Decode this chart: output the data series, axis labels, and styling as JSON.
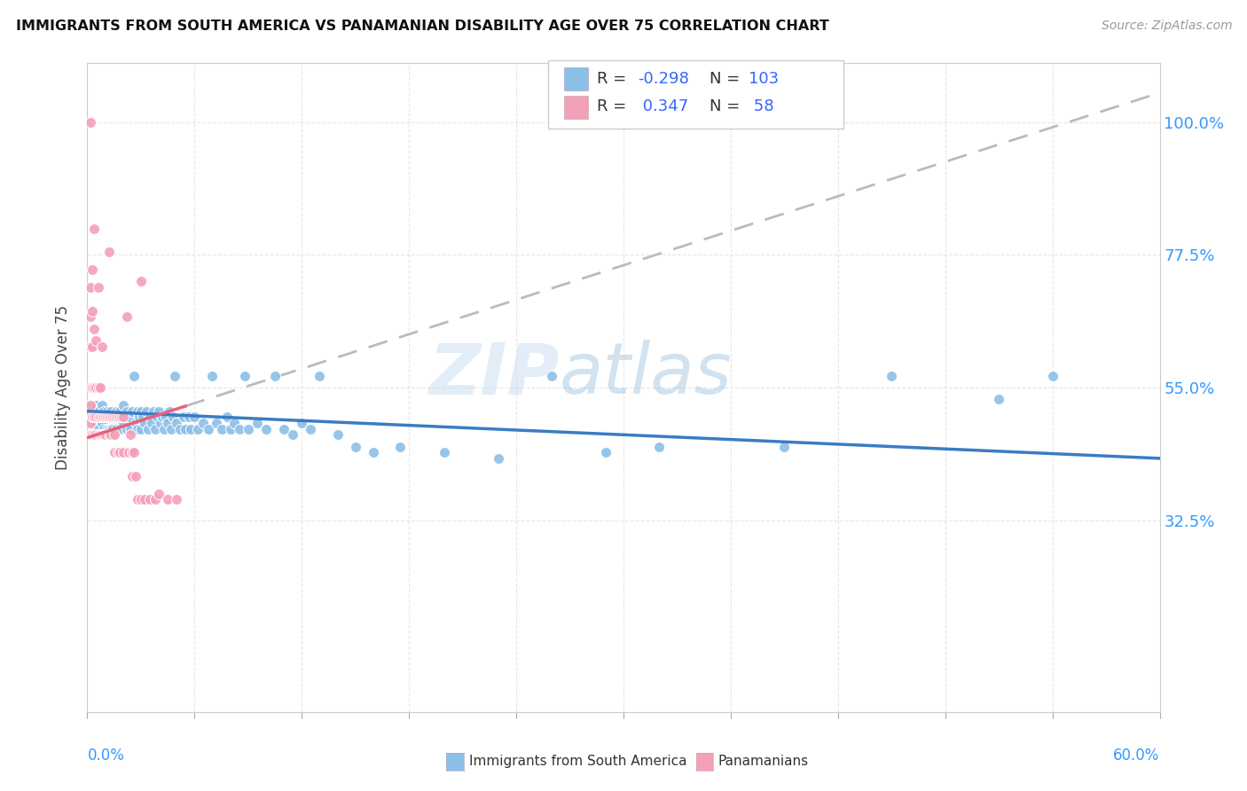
{
  "title": "IMMIGRANTS FROM SOUTH AMERICA VS PANAMANIAN DISABILITY AGE OVER 75 CORRELATION CHART",
  "source": "Source: ZipAtlas.com",
  "ylabel": "Disability Age Over 75",
  "xlim": [
    0.0,
    0.6
  ],
  "ylim": [
    0.0,
    1.1
  ],
  "ytick_values": [
    0.325,
    0.55,
    0.775,
    1.0
  ],
  "ytick_labels": [
    "32.5%",
    "55.0%",
    "77.5%",
    "100.0%"
  ],
  "blue_color": "#8BBFE8",
  "pink_color": "#F4A0B8",
  "blue_line_color": "#3A7CC4",
  "pink_line_color": "#E8607A",
  "blue_scatter": [
    [
      0.001,
      0.5
    ],
    [
      0.002,
      0.52
    ],
    [
      0.002,
      0.48
    ],
    [
      0.003,
      0.51
    ],
    [
      0.003,
      0.49
    ],
    [
      0.004,
      0.5
    ],
    [
      0.004,
      0.48
    ],
    [
      0.005,
      0.52
    ],
    [
      0.005,
      0.49
    ],
    [
      0.006,
      0.51
    ],
    [
      0.006,
      0.48
    ],
    [
      0.007,
      0.5
    ],
    [
      0.007,
      0.47
    ],
    [
      0.008,
      0.52
    ],
    [
      0.008,
      0.49
    ],
    [
      0.009,
      0.51
    ],
    [
      0.009,
      0.48
    ],
    [
      0.01,
      0.5
    ],
    [
      0.01,
      0.47
    ],
    [
      0.011,
      0.51
    ],
    [
      0.011,
      0.48
    ],
    [
      0.012,
      0.5
    ],
    [
      0.012,
      0.48
    ],
    [
      0.013,
      0.51
    ],
    [
      0.013,
      0.48
    ],
    [
      0.014,
      0.5
    ],
    [
      0.014,
      0.48
    ],
    [
      0.015,
      0.5
    ],
    [
      0.015,
      0.47
    ],
    [
      0.016,
      0.51
    ],
    [
      0.016,
      0.48
    ],
    [
      0.017,
      0.5
    ],
    [
      0.018,
      0.51
    ],
    [
      0.018,
      0.48
    ],
    [
      0.019,
      0.5
    ],
    [
      0.02,
      0.52
    ],
    [
      0.02,
      0.49
    ],
    [
      0.021,
      0.5
    ],
    [
      0.022,
      0.51
    ],
    [
      0.022,
      0.48
    ],
    [
      0.023,
      0.5
    ],
    [
      0.024,
      0.48
    ],
    [
      0.025,
      0.51
    ],
    [
      0.026,
      0.57
    ],
    [
      0.027,
      0.49
    ],
    [
      0.028,
      0.51
    ],
    [
      0.028,
      0.48
    ],
    [
      0.029,
      0.5
    ],
    [
      0.03,
      0.51
    ],
    [
      0.03,
      0.48
    ],
    [
      0.031,
      0.5
    ],
    [
      0.032,
      0.49
    ],
    [
      0.033,
      0.51
    ],
    [
      0.034,
      0.48
    ],
    [
      0.035,
      0.5
    ],
    [
      0.036,
      0.49
    ],
    [
      0.037,
      0.51
    ],
    [
      0.038,
      0.48
    ],
    [
      0.039,
      0.5
    ],
    [
      0.04,
      0.51
    ],
    [
      0.041,
      0.49
    ],
    [
      0.042,
      0.5
    ],
    [
      0.043,
      0.48
    ],
    [
      0.044,
      0.5
    ],
    [
      0.045,
      0.49
    ],
    [
      0.046,
      0.51
    ],
    [
      0.047,
      0.48
    ],
    [
      0.048,
      0.5
    ],
    [
      0.049,
      0.57
    ],
    [
      0.05,
      0.49
    ],
    [
      0.052,
      0.48
    ],
    [
      0.054,
      0.5
    ],
    [
      0.055,
      0.48
    ],
    [
      0.057,
      0.5
    ],
    [
      0.058,
      0.48
    ],
    [
      0.06,
      0.5
    ],
    [
      0.062,
      0.48
    ],
    [
      0.065,
      0.49
    ],
    [
      0.068,
      0.48
    ],
    [
      0.07,
      0.57
    ],
    [
      0.072,
      0.49
    ],
    [
      0.075,
      0.48
    ],
    [
      0.078,
      0.5
    ],
    [
      0.08,
      0.48
    ],
    [
      0.082,
      0.49
    ],
    [
      0.085,
      0.48
    ],
    [
      0.088,
      0.57
    ],
    [
      0.09,
      0.48
    ],
    [
      0.095,
      0.49
    ],
    [
      0.1,
      0.48
    ],
    [
      0.105,
      0.57
    ],
    [
      0.11,
      0.48
    ],
    [
      0.115,
      0.47
    ],
    [
      0.12,
      0.49
    ],
    [
      0.125,
      0.48
    ],
    [
      0.13,
      0.57
    ],
    [
      0.14,
      0.47
    ],
    [
      0.15,
      0.45
    ],
    [
      0.16,
      0.44
    ],
    [
      0.175,
      0.45
    ],
    [
      0.2,
      0.44
    ],
    [
      0.23,
      0.43
    ],
    [
      0.26,
      0.57
    ],
    [
      0.29,
      0.44
    ],
    [
      0.32,
      0.45
    ],
    [
      0.39,
      0.45
    ],
    [
      0.45,
      0.57
    ],
    [
      0.51,
      0.53
    ],
    [
      0.54,
      0.57
    ]
  ],
  "pink_scatter": [
    [
      0.001,
      0.5
    ],
    [
      0.001,
      0.47
    ],
    [
      0.002,
      0.52
    ],
    [
      0.002,
      0.49
    ],
    [
      0.002,
      0.47
    ],
    [
      0.002,
      0.55
    ],
    [
      0.002,
      0.62
    ],
    [
      0.002,
      0.67
    ],
    [
      0.002,
      0.72
    ],
    [
      0.002,
      1.0
    ],
    [
      0.003,
      0.5
    ],
    [
      0.003,
      0.47
    ],
    [
      0.003,
      0.55
    ],
    [
      0.003,
      0.62
    ],
    [
      0.003,
      0.68
    ],
    [
      0.003,
      0.75
    ],
    [
      0.004,
      0.5
    ],
    [
      0.004,
      0.47
    ],
    [
      0.004,
      0.55
    ],
    [
      0.004,
      0.65
    ],
    [
      0.004,
      0.82
    ],
    [
      0.005,
      0.5
    ],
    [
      0.005,
      0.47
    ],
    [
      0.005,
      0.55
    ],
    [
      0.005,
      0.63
    ],
    [
      0.006,
      0.5
    ],
    [
      0.006,
      0.47
    ],
    [
      0.006,
      0.55
    ],
    [
      0.006,
      0.72
    ],
    [
      0.007,
      0.5
    ],
    [
      0.007,
      0.47
    ],
    [
      0.007,
      0.55
    ],
    [
      0.008,
      0.5
    ],
    [
      0.008,
      0.47
    ],
    [
      0.008,
      0.62
    ],
    [
      0.009,
      0.5
    ],
    [
      0.009,
      0.47
    ],
    [
      0.01,
      0.5
    ],
    [
      0.01,
      0.47
    ],
    [
      0.011,
      0.5
    ],
    [
      0.012,
      0.5
    ],
    [
      0.012,
      0.47
    ],
    [
      0.012,
      0.78
    ],
    [
      0.013,
      0.5
    ],
    [
      0.013,
      0.47
    ],
    [
      0.014,
      0.5
    ],
    [
      0.015,
      0.5
    ],
    [
      0.015,
      0.47
    ],
    [
      0.015,
      0.44
    ],
    [
      0.016,
      0.5
    ],
    [
      0.017,
      0.5
    ],
    [
      0.017,
      0.44
    ],
    [
      0.018,
      0.5
    ],
    [
      0.018,
      0.44
    ],
    [
      0.019,
      0.5
    ],
    [
      0.02,
      0.5
    ],
    [
      0.02,
      0.44
    ],
    [
      0.022,
      0.67
    ],
    [
      0.023,
      0.44
    ],
    [
      0.024,
      0.47
    ],
    [
      0.025,
      0.44
    ],
    [
      0.025,
      0.4
    ],
    [
      0.026,
      0.44
    ],
    [
      0.027,
      0.4
    ],
    [
      0.028,
      0.36
    ],
    [
      0.03,
      0.73
    ],
    [
      0.03,
      0.36
    ],
    [
      0.032,
      0.36
    ],
    [
      0.035,
      0.36
    ],
    [
      0.038,
      0.36
    ],
    [
      0.04,
      0.37
    ],
    [
      0.045,
      0.36
    ],
    [
      0.05,
      0.36
    ]
  ],
  "watermark_text": "ZIPatlas",
  "background_color": "#FFFFFF",
  "grid_color": "#E0E0E0"
}
